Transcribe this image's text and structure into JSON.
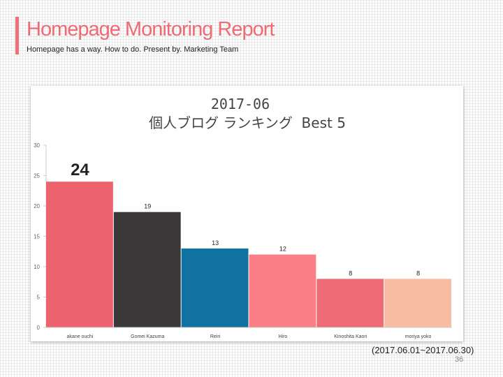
{
  "header": {
    "title": "Homepage Monitoring Report",
    "subtitle": "Homepage has a way. How to do. Present by. Marketing Team"
  },
  "footer": {
    "period": "(2017.06.01~2017.06.30)",
    "page_number": "36"
  },
  "colors": {
    "accent": "#ee6b75",
    "bars": [
      "#ec636e",
      "#3a3839",
      "#0f72a0",
      "#fb7e87",
      "#ee6b75",
      "#f8bba3"
    ]
  },
  "chart_data": {
    "type": "bar",
    "title": "2017-06",
    "subtitle": "個人ブログ ランキング  Best 5",
    "categories": [
      "akane ouchi",
      "Gomei Kazuma",
      "Reiri",
      "Hiro",
      "Kinoshita Kaori",
      "moriya yoko"
    ],
    "values": [
      24,
      19,
      13,
      12,
      8,
      8
    ],
    "ylim": [
      0,
      30
    ],
    "yticks": [
      0,
      5,
      10,
      15,
      20,
      25,
      30
    ],
    "grid": false,
    "legend": "none"
  }
}
